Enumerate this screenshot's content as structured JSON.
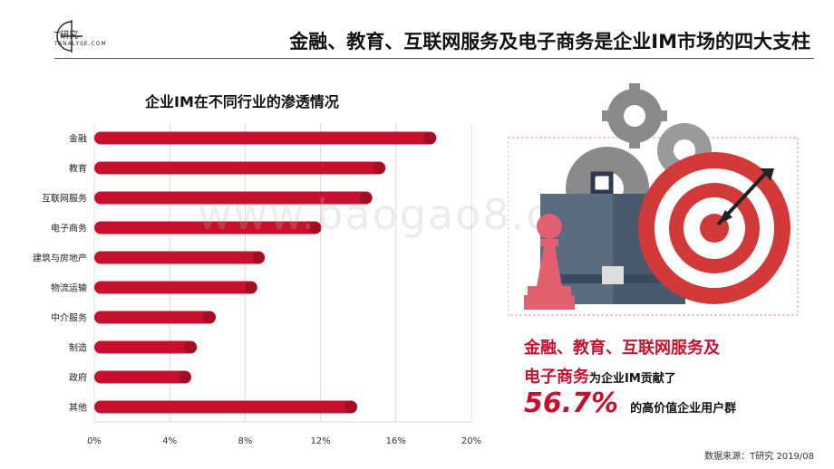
{
  "brand": {
    "name": "T研究",
    "tagline": "TANALYSE.COM"
  },
  "headline": "金融、教育、互联网服务及电子商务是企业IM市场的四大支柱",
  "watermark": "www.baogao8.com",
  "chart_data": {
    "type": "bar",
    "orientation": "horizontal",
    "title": "企业IM在不同行业的渗透情况",
    "categories": [
      "金融",
      "教育",
      "互联网服务",
      "电子商务",
      "建筑与房地产",
      "物流运输",
      "中介服务",
      "制造",
      "政府",
      "其他"
    ],
    "values": [
      18.0,
      15.3,
      14.6,
      11.9,
      8.9,
      8.5,
      6.3,
      5.3,
      5.0,
      13.8
    ],
    "xlim": [
      0,
      20
    ],
    "xticks": [
      0,
      4,
      8,
      12,
      16,
      20
    ],
    "xtick_labels": [
      "0%",
      "4%",
      "8%",
      "12%",
      "16%",
      "20%"
    ],
    "grid": true,
    "bar_color": "#c8102e"
  },
  "summary": {
    "highlight_line1": "金融、教育、互联网服务及",
    "highlight_line2": "电子商务",
    "text_line2": "为企业IM贡献了",
    "percent": "56.7%",
    "text_line3": "的高价值企业用户群"
  },
  "source": "数据来源：T研究 2019/08",
  "colors": {
    "accent": "#c8102e",
    "gear": "#8a8a8a",
    "briefcase": "#4a5a6e"
  }
}
